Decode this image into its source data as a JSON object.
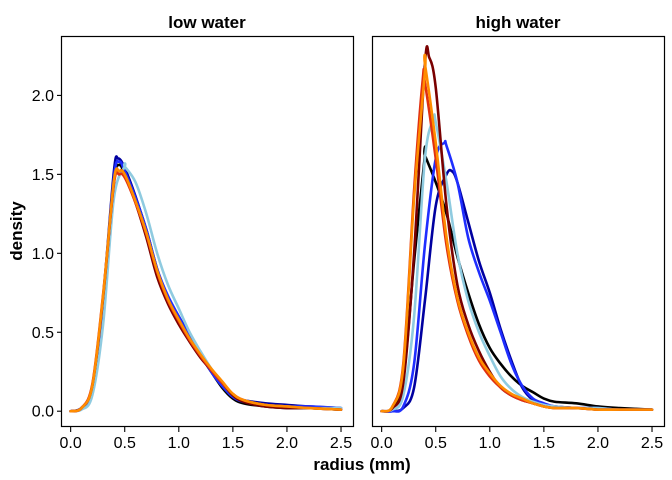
{
  "chart_data": {
    "type": "line",
    "xlabel": "radius (mm)",
    "ylabel": "density",
    "xlim": [
      -0.08,
      2.62
    ],
    "ylim": [
      -0.1,
      2.37
    ],
    "x_ticks": [
      0.0,
      0.5,
      1.0,
      1.5,
      2.0,
      2.5
    ],
    "x_tick_labels": [
      "0.0",
      "0.5",
      "1.0",
      "1.5",
      "2.0",
      "2.5"
    ],
    "y_ticks": [
      0.0,
      0.5,
      1.0,
      1.5,
      2.0
    ],
    "y_tick_labels": [
      "0.0",
      "0.5",
      "1.0",
      "1.5",
      "2.0"
    ],
    "grid": false,
    "legend": "none",
    "panels": [
      {
        "title": "low water",
        "series": [
          {
            "color": "#000000",
            "peak_x": 0.45,
            "peak_y": 1.56,
            "x": [
              0.0,
              0.1,
              0.2,
              0.3,
              0.4,
              0.5,
              0.6,
              0.7,
              0.8,
              0.9,
              1.0,
              1.1,
              1.2,
              1.3,
              1.4,
              1.5,
              1.6,
              1.8,
              2.0,
              2.2,
              2.5
            ],
            "y": [
              0.0,
              0.02,
              0.15,
              0.7,
              1.45,
              1.5,
              1.35,
              1.15,
              0.9,
              0.72,
              0.58,
              0.45,
              0.35,
              0.25,
              0.15,
              0.08,
              0.05,
              0.03,
              0.02,
              0.02,
              0.01
            ]
          },
          {
            "color": "#0000a0",
            "peak_x": 0.44,
            "peak_y": 1.6,
            "x": [
              0.0,
              0.1,
              0.2,
              0.3,
              0.4,
              0.5,
              0.6,
              0.7,
              0.8,
              0.9,
              1.0,
              1.1,
              1.2,
              1.3,
              1.4,
              1.5,
              1.6,
              1.8,
              2.0,
              2.2,
              2.5
            ],
            "y": [
              0.0,
              0.02,
              0.15,
              0.72,
              1.52,
              1.54,
              1.36,
              1.14,
              0.88,
              0.72,
              0.6,
              0.48,
              0.36,
              0.25,
              0.16,
              0.1,
              0.07,
              0.05,
              0.04,
              0.03,
              0.02
            ]
          },
          {
            "color": "#1f2eff",
            "peak_x": 0.45,
            "peak_y": 1.58,
            "x": [
              0.0,
              0.1,
              0.2,
              0.3,
              0.4,
              0.5,
              0.6,
              0.7,
              0.8,
              0.9,
              1.0,
              1.1,
              1.2,
              1.3,
              1.4,
              1.5,
              1.6,
              1.8,
              2.0,
              2.2,
              2.5
            ],
            "y": [
              0.0,
              0.02,
              0.15,
              0.7,
              1.48,
              1.52,
              1.35,
              1.15,
              0.9,
              0.73,
              0.6,
              0.47,
              0.36,
              0.25,
              0.16,
              0.09,
              0.06,
              0.04,
              0.03,
              0.03,
              0.02
            ]
          },
          {
            "color": "#8fcbe0",
            "peak_x": 0.5,
            "peak_y": 1.55,
            "x": [
              0.0,
              0.1,
              0.2,
              0.3,
              0.4,
              0.5,
              0.6,
              0.7,
              0.8,
              0.9,
              1.0,
              1.1,
              1.2,
              1.3,
              1.4,
              1.5,
              1.6,
              1.8,
              2.0,
              2.2,
              2.5
            ],
            "y": [
              0.0,
              0.01,
              0.1,
              0.55,
              1.35,
              1.55,
              1.45,
              1.25,
              1.0,
              0.8,
              0.65,
              0.5,
              0.38,
              0.27,
              0.18,
              0.1,
              0.07,
              0.04,
              0.03,
              0.02,
              0.02
            ]
          },
          {
            "color": "#7a0000",
            "peak_x": 0.45,
            "peak_y": 1.52,
            "x": [
              0.0,
              0.1,
              0.2,
              0.3,
              0.4,
              0.5,
              0.6,
              0.7,
              0.8,
              0.9,
              1.0,
              1.1,
              1.2,
              1.3,
              1.4,
              1.5,
              1.6,
              1.8,
              2.0,
              2.2,
              2.5
            ],
            "y": [
              0.0,
              0.02,
              0.16,
              0.72,
              1.45,
              1.5,
              1.32,
              1.1,
              0.85,
              0.68,
              0.55,
              0.44,
              0.34,
              0.26,
              0.18,
              0.1,
              0.06,
              0.03,
              0.02,
              0.02,
              0.01
            ]
          },
          {
            "color": "#e03010",
            "peak_x": 0.45,
            "peak_y": 1.5,
            "x": [
              0.0,
              0.1,
              0.2,
              0.3,
              0.4,
              0.5,
              0.6,
              0.7,
              0.8,
              0.9,
              1.0,
              1.1,
              1.2,
              1.3,
              1.4,
              1.5,
              1.6,
              1.8,
              2.0,
              2.2,
              2.5
            ],
            "y": [
              0.0,
              0.02,
              0.17,
              0.74,
              1.44,
              1.48,
              1.32,
              1.12,
              0.88,
              0.7,
              0.57,
              0.45,
              0.35,
              0.26,
              0.18,
              0.11,
              0.07,
              0.04,
              0.03,
              0.02,
              0.01
            ]
          },
          {
            "color": "#ff8c00",
            "peak_x": 0.45,
            "peak_y": 1.52,
            "x": [
              0.0,
              0.1,
              0.2,
              0.3,
              0.4,
              0.5,
              0.6,
              0.7,
              0.8,
              0.9,
              1.0,
              1.1,
              1.2,
              1.3,
              1.4,
              1.5,
              1.6,
              1.8,
              2.0,
              2.2,
              2.5
            ],
            "y": [
              0.0,
              0.02,
              0.16,
              0.73,
              1.46,
              1.5,
              1.33,
              1.13,
              0.89,
              0.71,
              0.58,
              0.46,
              0.36,
              0.27,
              0.19,
              0.11,
              0.07,
              0.04,
              0.03,
              0.02,
              0.01
            ]
          }
        ]
      },
      {
        "title": "high water",
        "series": [
          {
            "color": "#000000",
            "peak_x": 0.4,
            "peak_y": 1.62,
            "x": [
              0.0,
              0.1,
              0.2,
              0.3,
              0.4,
              0.5,
              0.6,
              0.7,
              0.8,
              0.9,
              1.0,
              1.1,
              1.2,
              1.3,
              1.4,
              1.5,
              1.6,
              1.8,
              2.0,
              2.2,
              2.5
            ],
            "y": [
              0.0,
              0.02,
              0.2,
              0.95,
              1.62,
              1.45,
              1.25,
              0.98,
              0.75,
              0.55,
              0.4,
              0.3,
              0.22,
              0.16,
              0.12,
              0.08,
              0.06,
              0.05,
              0.03,
              0.02,
              0.01
            ]
          },
          {
            "color": "#0000a0",
            "peak_x": 0.65,
            "peak_y": 1.52,
            "x": [
              0.0,
              0.1,
              0.2,
              0.3,
              0.4,
              0.5,
              0.6,
              0.7,
              0.8,
              0.9,
              1.0,
              1.1,
              1.2,
              1.3,
              1.4,
              1.5,
              1.6,
              1.8,
              2.0,
              2.2,
              2.5
            ],
            "y": [
              0.0,
              0.0,
              0.02,
              0.15,
              0.7,
              1.3,
              1.5,
              1.45,
              1.2,
              0.95,
              0.75,
              0.52,
              0.32,
              0.15,
              0.07,
              0.04,
              0.03,
              0.02,
              0.02,
              0.01,
              0.01
            ]
          },
          {
            "color": "#1f2eff",
            "peak_x": 0.58,
            "peak_y": 1.7,
            "x": [
              0.0,
              0.1,
              0.2,
              0.3,
              0.4,
              0.5,
              0.6,
              0.7,
              0.8,
              0.9,
              1.0,
              1.1,
              1.2,
              1.3,
              1.4,
              1.5,
              1.6,
              1.8,
              2.0,
              2.2,
              2.5
            ],
            "y": [
              0.0,
              0.0,
              0.03,
              0.3,
              1.05,
              1.6,
              1.68,
              1.45,
              1.1,
              0.88,
              0.7,
              0.5,
              0.3,
              0.16,
              0.08,
              0.05,
              0.03,
              0.02,
              0.02,
              0.01,
              0.01
            ]
          },
          {
            "color": "#8fcbe0",
            "peak_x": 0.48,
            "peak_y": 1.85,
            "x": [
              0.0,
              0.1,
              0.2,
              0.3,
              0.4,
              0.5,
              0.6,
              0.7,
              0.8,
              0.9,
              1.0,
              1.1,
              1.2,
              1.3,
              1.4,
              1.5,
              1.6,
              1.8,
              2.0,
              2.2,
              2.5
            ],
            "y": [
              0.0,
              0.01,
              0.1,
              0.6,
              1.6,
              1.83,
              1.45,
              1.0,
              0.7,
              0.5,
              0.35,
              0.22,
              0.14,
              0.09,
              0.06,
              0.04,
              0.03,
              0.02,
              0.02,
              0.01,
              0.01
            ]
          },
          {
            "color": "#7a0000",
            "peak_x": 0.44,
            "peak_y": 2.24,
            "x": [
              0.0,
              0.1,
              0.2,
              0.3,
              0.4,
              0.5,
              0.6,
              0.7,
              0.8,
              0.9,
              1.0,
              1.1,
              1.2,
              1.3,
              1.4,
              1.5,
              1.6,
              1.8,
              2.0,
              2.2,
              2.5
            ],
            "y": [
              0.0,
              0.02,
              0.18,
              1.0,
              2.2,
              2.05,
              1.3,
              0.8,
              0.55,
              0.38,
              0.25,
              0.15,
              0.1,
              0.07,
              0.05,
              0.03,
              0.02,
              0.02,
              0.01,
              0.01,
              0.01
            ]
          },
          {
            "color": "#e03010",
            "peak_x": 0.38,
            "peak_y": 2.1,
            "x": [
              0.0,
              0.1,
              0.2,
              0.3,
              0.4,
              0.5,
              0.6,
              0.7,
              0.8,
              0.9,
              1.0,
              1.1,
              1.2,
              1.3,
              1.4,
              1.5,
              1.6,
              1.8,
              2.0,
              2.2,
              2.5
            ],
            "y": [
              0.0,
              0.03,
              0.3,
              1.4,
              2.08,
              1.6,
              1.05,
              0.7,
              0.48,
              0.32,
              0.22,
              0.15,
              0.1,
              0.07,
              0.05,
              0.03,
              0.02,
              0.02,
              0.01,
              0.01,
              0.01
            ]
          },
          {
            "color": "#ff8c00",
            "peak_x": 0.4,
            "peak_y": 2.2,
            "x": [
              0.0,
              0.1,
              0.2,
              0.3,
              0.4,
              0.5,
              0.6,
              0.7,
              0.8,
              0.9,
              1.0,
              1.1,
              1.2,
              1.3,
              1.4,
              1.5,
              1.6,
              1.8,
              2.0,
              2.2,
              2.5
            ],
            "y": [
              0.0,
              0.03,
              0.28,
              1.35,
              2.15,
              1.7,
              1.1,
              0.72,
              0.5,
              0.34,
              0.24,
              0.16,
              0.11,
              0.08,
              0.05,
              0.03,
              0.02,
              0.02,
              0.01,
              0.01,
              0.01
            ]
          }
        ]
      }
    ]
  }
}
